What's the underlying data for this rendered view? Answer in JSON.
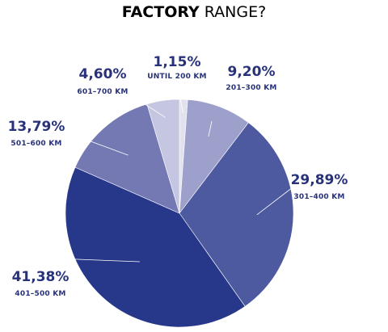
{
  "title": {
    "bold": "FACTORY",
    "light": " RANGE?"
  },
  "colors": {
    "text": "#28327a",
    "leader": "#ffffff"
  },
  "chart_data": {
    "type": "pie",
    "title": "FACTORY RANGE?",
    "start_angle_deg": 0,
    "direction": "clockwise",
    "slices": [
      {
        "label": "UNTIL 200 KM",
        "value_text": "1,15%",
        "value": 1.15,
        "color": "#e2e2ef"
      },
      {
        "label": "201–300 KM",
        "value_text": "9,20%",
        "value": 9.2,
        "color": "#9ea0cc"
      },
      {
        "label": "301–400 KM",
        "value_text": "29,89%",
        "value": 29.89,
        "color": "#4d5aa0"
      },
      {
        "label": "401–500 KM",
        "value_text": "41,38%",
        "value": 41.38,
        "color": "#27388a"
      },
      {
        "label": "501–600 KM",
        "value_text": "13,79%",
        "value": 13.79,
        "color": "#7478b3"
      },
      {
        "label": "601–700 KM",
        "value_text": "4,60%",
        "value": 4.6,
        "color": "#c5c6e1"
      }
    ]
  }
}
